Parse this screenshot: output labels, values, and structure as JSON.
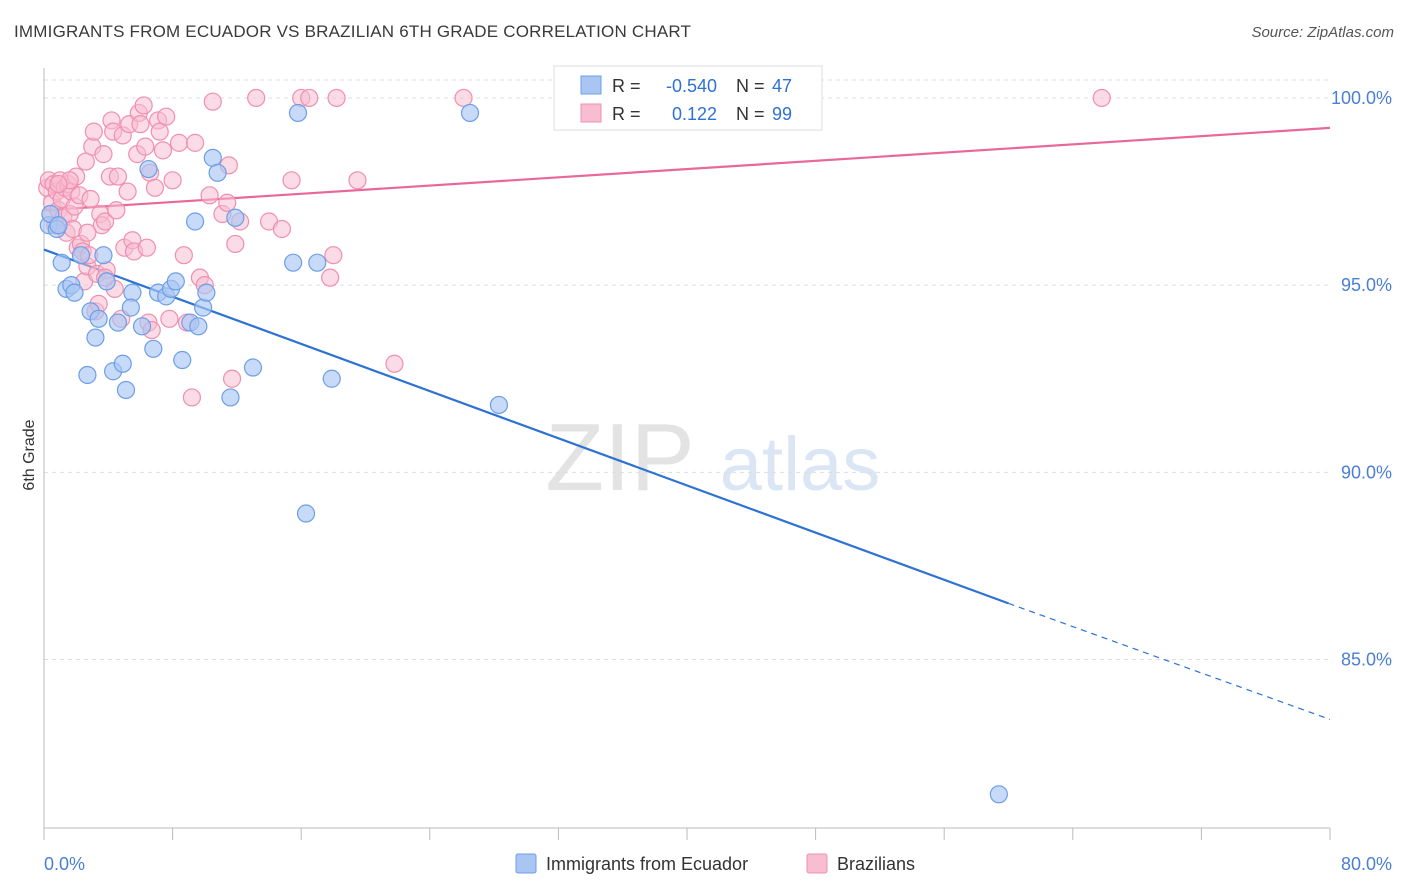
{
  "header": {
    "title": "IMMIGRANTS FROM ECUADOR VS BRAZILIAN 6TH GRADE CORRELATION CHART",
    "source": "Source: ZipAtlas.com"
  },
  "watermark": {
    "zip": "ZIP",
    "atlas": "atlas"
  },
  "legend_box": {
    "rows": [
      {
        "r_label": "R =",
        "r_value": "-0.540",
        "n_label": "N =",
        "n_value": "47",
        "color": "#6d9ee8"
      },
      {
        "r_label": "R =",
        "r_value": "0.122",
        "n_label": "N =",
        "n_value": "99",
        "color": "#f08fb0"
      }
    ]
  },
  "colors": {
    "ecuador_fill": "#a9c6f3",
    "ecuador_stroke": "#6d9ee8",
    "ecuador_line": "#2e72d2",
    "brazil_fill": "#f8bdd0",
    "brazil_stroke": "#f08fb0",
    "brazil_line": "#e8689a",
    "axis_text": "#4a7fd4",
    "grid": "#dddddd"
  },
  "chart_data": {
    "type": "scatter",
    "title": "IMMIGRANTS FROM ECUADOR VS BRAZILIAN 6TH GRADE CORRELATION CHART",
    "xlabel": "",
    "ylabel": "6th Grade",
    "xlim": [
      0,
      80
    ],
    "ylim": [
      80.5,
      100.8
    ],
    "x_ticks_labeled": [
      "0.0%",
      "80.0%"
    ],
    "y_ticks": [
      85,
      90,
      95,
      100
    ],
    "y_tick_labels": [
      "85.0%",
      "90.0%",
      "95.0%",
      "100.0%"
    ],
    "grid": "horizontal dashed",
    "legend": "bottom-center",
    "series": [
      {
        "name": "Immigrants from Ecuador",
        "r": -0.54,
        "n": 47,
        "trend": {
          "x0": 0,
          "y0": 95.95,
          "x1": 60,
          "y1": 86.5,
          "dashed_to_x": 80,
          "dashed_to_y": 83.4
        },
        "points": [
          [
            0.3,
            96.6
          ],
          [
            0.4,
            96.9
          ],
          [
            0.8,
            96.5
          ],
          [
            0.9,
            96.6
          ],
          [
            1.1,
            95.6
          ],
          [
            1.4,
            94.9
          ],
          [
            1.7,
            95.0
          ],
          [
            1.9,
            94.8
          ],
          [
            2.3,
            95.8
          ],
          [
            2.7,
            92.6
          ],
          [
            2.9,
            94.3
          ],
          [
            3.2,
            93.6
          ],
          [
            3.4,
            94.1
          ],
          [
            3.7,
            95.8
          ],
          [
            3.9,
            95.1
          ],
          [
            4.3,
            92.7
          ],
          [
            4.6,
            94.0
          ],
          [
            4.9,
            92.9
          ],
          [
            5.1,
            92.2
          ],
          [
            5.5,
            94.8
          ],
          [
            5.4,
            94.4
          ],
          [
            6.1,
            93.9
          ],
          [
            6.5,
            98.1
          ],
          [
            6.8,
            93.3
          ],
          [
            7.1,
            94.8
          ],
          [
            7.6,
            94.7
          ],
          [
            7.9,
            94.9
          ],
          [
            8.2,
            95.1
          ],
          [
            8.6,
            93.0
          ],
          [
            9.1,
            94.0
          ],
          [
            9.6,
            93.9
          ],
          [
            9.9,
            94.4
          ],
          [
            10.1,
            94.8
          ],
          [
            10.5,
            98.4
          ],
          [
            10.8,
            98.0
          ],
          [
            11.6,
            92.0
          ],
          [
            11.9,
            96.8
          ],
          [
            13.0,
            92.8
          ],
          [
            9.4,
            96.7
          ],
          [
            15.5,
            95.6
          ],
          [
            15.8,
            99.6
          ],
          [
            16.3,
            88.9
          ],
          [
            17.0,
            95.6
          ],
          [
            17.9,
            92.5
          ],
          [
            26.5,
            99.6
          ],
          [
            28.3,
            91.8
          ],
          [
            59.4,
            81.4
          ]
        ]
      },
      {
        "name": "Brazilians",
        "r": 0.122,
        "n": 99,
        "trend": {
          "x0": 0,
          "y0": 97.0,
          "x1": 80,
          "y1": 99.2
        },
        "points": [
          [
            0.2,
            97.6
          ],
          [
            0.3,
            97.8
          ],
          [
            0.4,
            96.9
          ],
          [
            0.5,
            97.2
          ],
          [
            0.6,
            97.7
          ],
          [
            0.7,
            96.6
          ],
          [
            0.8,
            97.5
          ],
          [
            0.9,
            97.0
          ],
          [
            1.0,
            97.8
          ],
          [
            1.1,
            97.3
          ],
          [
            1.2,
            96.8
          ],
          [
            1.3,
            97.6
          ],
          [
            1.4,
            96.4
          ],
          [
            1.5,
            97.7
          ],
          [
            1.6,
            96.9
          ],
          [
            1.7,
            97.5
          ],
          [
            1.8,
            96.5
          ],
          [
            1.9,
            97.1
          ],
          [
            2.0,
            97.9
          ],
          [
            2.1,
            96.0
          ],
          [
            2.2,
            97.4
          ],
          [
            2.3,
            96.1
          ],
          [
            2.4,
            95.9
          ],
          [
            2.5,
            95.1
          ],
          [
            2.6,
            98.3
          ],
          [
            2.7,
            95.5
          ],
          [
            2.8,
            95.8
          ],
          [
            2.9,
            97.3
          ],
          [
            3.0,
            98.7
          ],
          [
            3.1,
            99.1
          ],
          [
            3.2,
            94.3
          ],
          [
            3.3,
            95.3
          ],
          [
            3.4,
            94.5
          ],
          [
            3.5,
            96.9
          ],
          [
            3.6,
            96.6
          ],
          [
            3.7,
            98.5
          ],
          [
            3.8,
            96.7
          ],
          [
            3.9,
            95.4
          ],
          [
            4.1,
            97.9
          ],
          [
            4.2,
            99.4
          ],
          [
            4.3,
            99.1
          ],
          [
            4.4,
            94.9
          ],
          [
            4.5,
            97.0
          ],
          [
            4.6,
            97.9
          ],
          [
            4.8,
            94.1
          ],
          [
            4.9,
            99.0
          ],
          [
            5.0,
            96.0
          ],
          [
            5.2,
            97.5
          ],
          [
            5.3,
            99.3
          ],
          [
            5.5,
            96.2
          ],
          [
            5.6,
            95.9
          ],
          [
            5.8,
            98.5
          ],
          [
            5.9,
            99.6
          ],
          [
            6.0,
            99.3
          ],
          [
            6.2,
            99.8
          ],
          [
            6.3,
            98.7
          ],
          [
            6.5,
            94.0
          ],
          [
            6.6,
            98.0
          ],
          [
            6.7,
            93.8
          ],
          [
            6.9,
            97.6
          ],
          [
            7.1,
            99.4
          ],
          [
            7.2,
            99.1
          ],
          [
            7.4,
            98.6
          ],
          [
            7.6,
            99.5
          ],
          [
            7.8,
            94.1
          ],
          [
            8.0,
            97.8
          ],
          [
            8.4,
            98.8
          ],
          [
            8.7,
            95.8
          ],
          [
            8.9,
            94.0
          ],
          [
            9.2,
            92.0
          ],
          [
            9.4,
            98.8
          ],
          [
            9.7,
            95.2
          ],
          [
            10.0,
            95.0
          ],
          [
            10.3,
            97.4
          ],
          [
            10.5,
            99.9
          ],
          [
            11.1,
            96.9
          ],
          [
            11.4,
            97.2
          ],
          [
            11.5,
            98.2
          ],
          [
            11.7,
            92.5
          ],
          [
            11.9,
            96.1
          ],
          [
            12.2,
            96.7
          ],
          [
            13.2,
            100.0
          ],
          [
            14.0,
            96.7
          ],
          [
            14.8,
            96.5
          ],
          [
            15.4,
            97.8
          ],
          [
            16.0,
            100.0
          ],
          [
            16.5,
            100.0
          ],
          [
            17.8,
            95.2
          ],
          [
            18.0,
            95.8
          ],
          [
            18.2,
            100.0
          ],
          [
            19.5,
            97.8
          ],
          [
            21.8,
            92.9
          ],
          [
            26.1,
            100.0
          ],
          [
            65.8,
            100.0
          ],
          [
            3.8,
            95.2
          ],
          [
            1.6,
            97.8
          ],
          [
            0.9,
            97.7
          ],
          [
            6.4,
            96.0
          ],
          [
            2.7,
            96.4
          ]
        ]
      }
    ]
  }
}
